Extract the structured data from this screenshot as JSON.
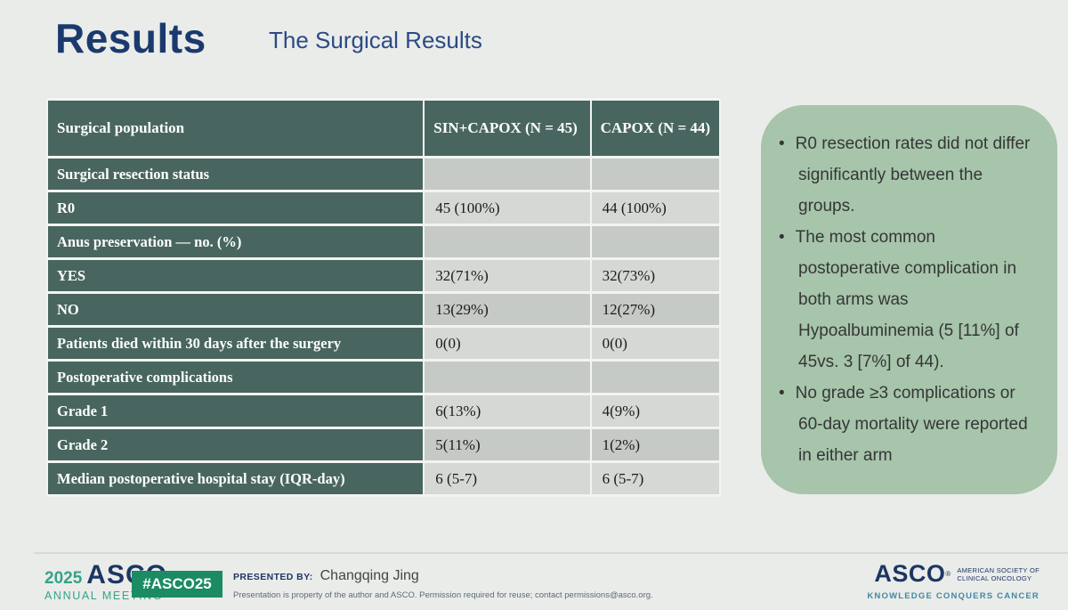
{
  "slide": {
    "title": "Results",
    "subtitle": "The Surgical Results"
  },
  "table": {
    "columns": [
      "Surgical population",
      "SIN+CAPOX (N = 45)",
      "CAPOX (N = 44)"
    ],
    "rows": [
      {
        "label": "Surgical resection status",
        "v1": "",
        "v2": ""
      },
      {
        "label": "R0",
        "v1": "45 (100%)",
        "v2": "44 (100%)"
      },
      {
        "label": "Anus preservation — no. (%)",
        "v1": "",
        "v2": ""
      },
      {
        "label": "YES",
        "v1": "32(71%)",
        "v2": "32(73%)"
      },
      {
        "label": "NO",
        "v1": "13(29%)",
        "v2": "12(27%)"
      },
      {
        "label": "Patients died within 30 days after the surgery",
        "v1": "0(0)",
        "v2": "0(0)"
      },
      {
        "label": "Postoperative complications",
        "v1": "",
        "v2": ""
      },
      {
        "label": "Grade 1",
        "v1": "6(13%)",
        "v2": "4(9%)"
      },
      {
        "label": "Grade 2",
        "v1": "5(11%)",
        "v2": "1(2%)"
      },
      {
        "label": "Median postoperative hospital stay (IQR-day)",
        "v1": "6 (5-7)",
        "v2": "6 (5-7)"
      }
    ]
  },
  "callout": {
    "bullets": [
      "R0 resection rates did not differ significantly between the groups.",
      "The most common postoperative complication in both arms was Hypoalbuminemia (5 [11%] of 45vs. 3 [7%] of 44).",
      "No grade ≥3 complications or 60-day mortality were reported in either arm"
    ]
  },
  "footer": {
    "meeting_year": "2025",
    "meeting_org": "ASCO",
    "meeting_reg": "®",
    "meeting_name": "ANNUAL MEETING",
    "hashtag": "#ASCO25",
    "presented_by_label": "PRESENTED BY:",
    "presenter": "Changqing Jing",
    "disclaimer": "Presentation is property of the author and ASCO. Permission required for reuse; contact permissions@asco.org.",
    "org_abbr": "ASCO",
    "org_reg": "®",
    "org_full_line1": "AMERICAN SOCIETY OF",
    "org_full_line2": "CLINICAL ONCOLOGY",
    "org_tagline": "KNOWLEDGE CONQUERS CANCER"
  },
  "colors": {
    "background": "#eaece9",
    "title_navy": "#1a3a6e",
    "table_teal": "#48665f",
    "row_gray_dark": "#c6cac7",
    "row_gray_light": "#d5d8d5",
    "callout_green": "#a6c5ab",
    "badge_green": "#1b8b63",
    "brand_navy": "#1c3664",
    "brand_green": "#36a289",
    "tagline_teal": "#4288a6"
  }
}
